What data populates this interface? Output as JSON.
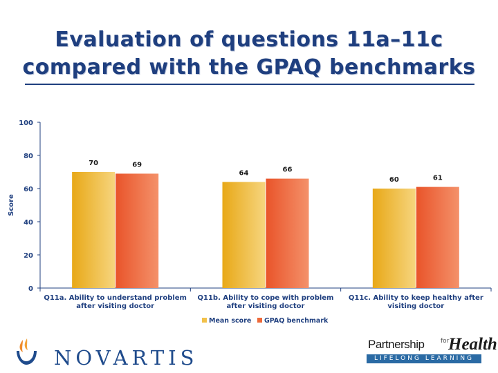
{
  "title": "Evaluation of questions 11a–11c compared with the GPAQ benchmarks",
  "title_line1": "Evaluation of questions 11a–11c",
  "title_line2": "compared with the GPAQ benchmarks",
  "colors": {
    "title": "#1f3f7f",
    "mean_score": "#f2c14a",
    "gpaq_benchmark": "#ee6a3a",
    "axis": "#1f3f7f",
    "logo_blue": "#1f4b8c",
    "logo_orange": "#f08b2a"
  },
  "chart_data": {
    "type": "bar",
    "title": "",
    "xlabel": "",
    "ylabel": "Score",
    "ylim": [
      0,
      100
    ],
    "yticks": [
      0,
      20,
      40,
      60,
      80,
      100
    ],
    "grid": false,
    "legend_position": "bottom-center",
    "categories": [
      [
        "Q11a. Ability to understand problem",
        "after visiting doctor"
      ],
      [
        "Q11b. Ability to cope with problem",
        "after visiting doctor"
      ],
      [
        "Q11c. Ability to keep healthy after",
        "visiting doctor"
      ]
    ],
    "series": [
      {
        "name": "Mean score",
        "values": [
          70,
          64,
          60
        ]
      },
      {
        "name": "GPAQ benchmark",
        "values": [
          69,
          66,
          61
        ]
      }
    ]
  },
  "logos": {
    "novartis": {
      "wordmark": "NOVARTIS",
      "icon": "novartis-flame-icon"
    },
    "partnership": {
      "line1_part1": "Partnership",
      "line1_for": "for",
      "line1_part2": "Health",
      "line2": "LIFELONG LEARNING"
    }
  }
}
